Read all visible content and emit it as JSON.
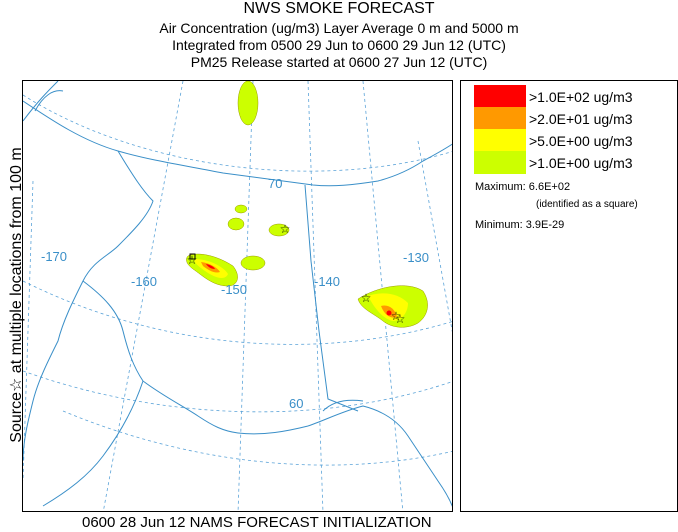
{
  "header": {
    "title": "NWS SMOKE FORECAST",
    "line2": "Air Concentration (ug/m3) Layer Average    0 m and  5000 m",
    "line3": "Integrated from 0500 29 Jun to 0600 29 Jun 12 (UTC)",
    "line4": "PM25 Release started at 0600 27 Jun 12 (UTC)"
  },
  "side_label": "Source☆ at multiple locations   from   100 m",
  "map": {
    "graticule_labels": {
      "lon_170": "-170",
      "lon_160": "-160",
      "lon_150": "-150",
      "lon_140": "-140",
      "lon_130": "-130",
      "lat_70": "70",
      "lat_60": "60"
    },
    "colors": {
      "graticule": "#5ba3d8",
      "coastline": "#3a8fc8",
      "border": "#3a8fc8"
    }
  },
  "legend": {
    "items": [
      {
        "label": ">1.0E+02 ug/m3",
        "color": "#ff0000"
      },
      {
        "label": ">2.0E+01 ug/m3",
        "color": "#ff9900"
      },
      {
        "label": ">5.0E+00 ug/m3",
        "color": "#ffff00"
      },
      {
        "label": ">1.0E+00 ug/m3",
        "color": "#ccff00"
      }
    ],
    "maximum": "Maximum: 6.6E+02",
    "maximum_note": "(identified as a square)",
    "minimum": "Minimum: 3.9E-29"
  },
  "footer": "0600 28 Jun 12 NAMS FORECAST INITIALIZATION"
}
